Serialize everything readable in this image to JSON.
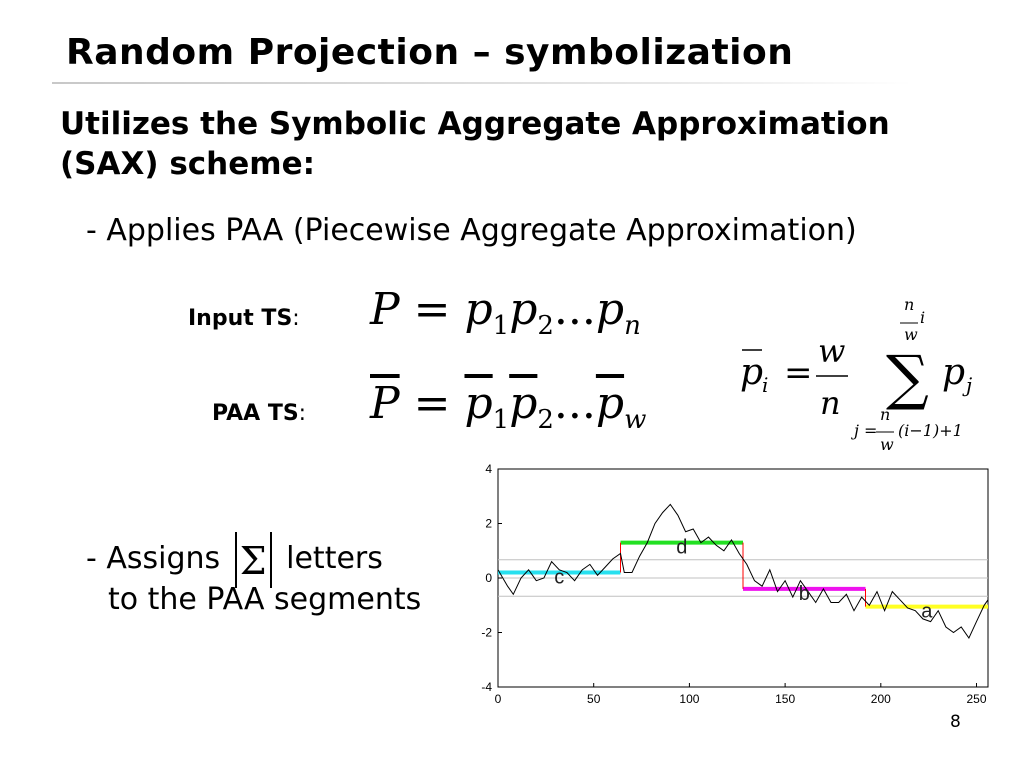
{
  "slide": {
    "title": "Random Projection – symbolization",
    "subtitle": "Utilizes the Symbolic Aggregate Approximation (SAX) scheme:",
    "bullet1": "-  Applies PAA (Piecewise Aggregate Approximation)",
    "input_label": "Input TS",
    "paa_label": "PAA TS",
    "colon": ":",
    "bullet2_prefix": "-  Assigns",
    "sigma_symbol": "Σ",
    "bullet2_suffix": "letters",
    "bullet2_line2": "to the PAA segments",
    "page_number": "8"
  },
  "formulas": {
    "input": {
      "P": "P",
      "eq": "=",
      "p": "p",
      "s1": "1",
      "s2": "2",
      "dots": "...",
      "sn": "n"
    },
    "paa": {
      "P": "P",
      "eq": "=",
      "p": "p",
      "s1": "1",
      "s2": "2",
      "dots": "...",
      "sw": "w"
    },
    "mean": {
      "p": "p",
      "i": "i",
      "eq": "=",
      "w": "w",
      "n": "n",
      "sum": "∑",
      "pj": "p",
      "j": "j",
      "upper_n": "n",
      "upper_w": "w",
      "upper_i": "i",
      "lower_j": "j",
      "lower_eq": "=",
      "lower_n": "n",
      "lower_w": "w",
      "lower_rest": "(i−1)+1"
    }
  },
  "chart_data": {
    "type": "line",
    "xlim": [
      0,
      256
    ],
    "ylim": [
      -4,
      4
    ],
    "x_ticks": [
      0,
      50,
      100,
      150,
      200,
      250
    ],
    "y_ticks": [
      4,
      2,
      0,
      -2,
      -4
    ],
    "breakpoints": [
      -0.67,
      0,
      0.67
    ],
    "series": [
      {
        "x": [
          0,
          5,
          8,
          12,
          16,
          20,
          24,
          28,
          32,
          36,
          40,
          44,
          48,
          52,
          56,
          60,
          64,
          66,
          70,
          74,
          78,
          82,
          86,
          90,
          94,
          98,
          102,
          106,
          110,
          114,
          118,
          122,
          126,
          130,
          134,
          138,
          142,
          146,
          150,
          154,
          158,
          162,
          166,
          170,
          174,
          178,
          182,
          186,
          190,
          194,
          198,
          202,
          206,
          210,
          214,
          218,
          222,
          226,
          230,
          234,
          238,
          242,
          246,
          250,
          254,
          256
        ],
        "y": [
          0.3,
          -0.3,
          -0.6,
          0.0,
          0.3,
          -0.1,
          0.0,
          0.6,
          0.3,
          0.2,
          -0.1,
          0.3,
          0.5,
          0.1,
          0.4,
          0.7,
          0.9,
          0.2,
          0.2,
          0.8,
          1.3,
          2.0,
          2.4,
          2.7,
          2.3,
          1.7,
          1.8,
          1.3,
          1.5,
          1.2,
          1.0,
          1.4,
          0.9,
          0.5,
          -0.1,
          -0.3,
          0.3,
          -0.5,
          -0.1,
          -0.7,
          -0.1,
          -0.5,
          -0.9,
          -0.4,
          -0.9,
          -0.9,
          -0.6,
          -1.2,
          -0.7,
          -1.0,
          -0.5,
          -1.2,
          -0.5,
          -0.8,
          -1.1,
          -1.2,
          -1.5,
          -1.6,
          -1.2,
          -1.8,
          -2.0,
          -1.8,
          -2.2,
          -1.6,
          -1.0,
          -0.8
        ]
      }
    ],
    "segments": [
      {
        "letter": "c",
        "x0": 0,
        "x1": 64,
        "y": 0.2,
        "color": "#27e0ef"
      },
      {
        "letter": "d",
        "x0": 64,
        "x1": 128,
        "y": 1.3,
        "color": "#22e022"
      },
      {
        "letter": "b",
        "x0": 128,
        "x1": 192,
        "y": -0.4,
        "color": "#ee12ee"
      },
      {
        "letter": "a",
        "x0": 192,
        "x1": 256,
        "y": -1.05,
        "color": "#ffff22"
      }
    ]
  }
}
